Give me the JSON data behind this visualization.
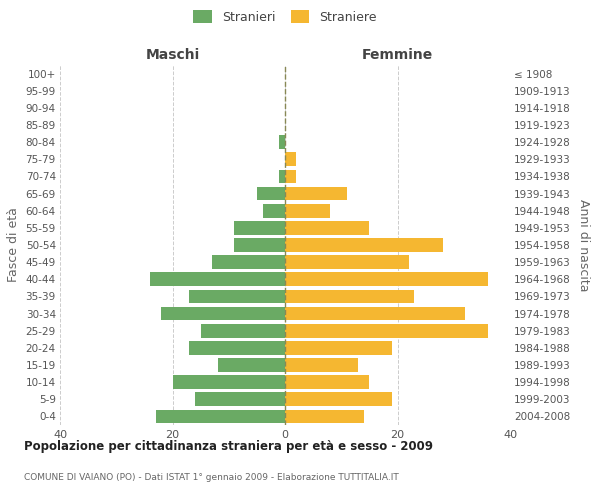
{
  "age_groups": [
    "0-4",
    "5-9",
    "10-14",
    "15-19",
    "20-24",
    "25-29",
    "30-34",
    "35-39",
    "40-44",
    "45-49",
    "50-54",
    "55-59",
    "60-64",
    "65-69",
    "70-74",
    "75-79",
    "80-84",
    "85-89",
    "90-94",
    "95-99",
    "100+"
  ],
  "birth_years": [
    "2004-2008",
    "1999-2003",
    "1994-1998",
    "1989-1993",
    "1984-1988",
    "1979-1983",
    "1974-1978",
    "1969-1973",
    "1964-1968",
    "1959-1963",
    "1954-1958",
    "1949-1953",
    "1944-1948",
    "1939-1943",
    "1934-1938",
    "1929-1933",
    "1924-1928",
    "1919-1923",
    "1914-1918",
    "1909-1913",
    "≤ 1908"
  ],
  "males": [
    23,
    16,
    20,
    12,
    17,
    15,
    22,
    17,
    24,
    13,
    9,
    9,
    4,
    5,
    1,
    0,
    1,
    0,
    0,
    0,
    0
  ],
  "females": [
    14,
    19,
    15,
    13,
    19,
    36,
    32,
    23,
    36,
    22,
    28,
    15,
    8,
    11,
    2,
    2,
    0,
    0,
    0,
    0,
    0
  ],
  "male_color": "#6aaa64",
  "female_color": "#f5b731",
  "title": "Popolazione per cittadinanza straniera per età e sesso - 2009",
  "subtitle": "COMUNE DI VAIANO (PO) - Dati ISTAT 1° gennaio 2009 - Elaborazione TUTTITALIA.IT",
  "legend_male": "Stranieri",
  "legend_female": "Straniere",
  "xlabel_left": "Maschi",
  "xlabel_right": "Femmine",
  "ylabel_left": "Fasce di età",
  "ylabel_right": "Anni di nascita",
  "xlim": 40,
  "background_color": "#ffffff",
  "grid_color": "#cccccc"
}
